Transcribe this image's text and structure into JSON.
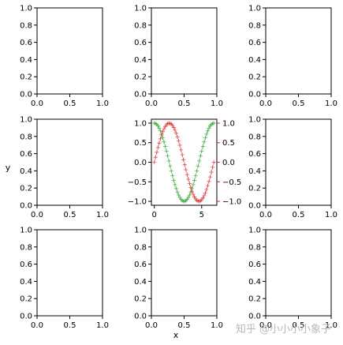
{
  "figure": {
    "xlabel": "x",
    "ylabel": "y",
    "watermark": "知乎 @小小小小象子"
  },
  "chart_data": {
    "type": "grid",
    "rows": 3,
    "cols": 3,
    "empty_axes": {
      "xlim": [
        0,
        1
      ],
      "ylim": [
        0,
        1
      ],
      "xticks": [
        "0.0",
        "0.5",
        "1.0"
      ],
      "yticks": [
        "0.0",
        "0.2",
        "0.4",
        "0.6",
        "0.8",
        "1.0"
      ]
    },
    "center": {
      "type": "line",
      "xlim": [
        -0.31,
        6.6
      ],
      "xticks": [
        "0",
        "5"
      ],
      "left_axis": {
        "ylim": [
          -1.1,
          1.1
        ],
        "yticks": [
          "1.0",
          "0.5",
          "0.0",
          "−0.5",
          "−1.0"
        ]
      },
      "right_axis": {
        "ylim": [
          -1.1,
          1.1
        ],
        "yticks": [
          "1.0",
          "0.5",
          "0.0",
          "−0.5",
          "−1.0"
        ],
        "color": "#d62728"
      },
      "series": [
        {
          "function": "cos",
          "color": "#2ca02c",
          "marker": "+",
          "axis": "left",
          "x_range": [
            0,
            6.2832
          ],
          "n_points": 50
        },
        {
          "function": "sin",
          "color": "#d62728",
          "marker": "+",
          "axis": "right",
          "x_range": [
            0,
            6.2832
          ],
          "n_points": 50
        }
      ]
    }
  }
}
